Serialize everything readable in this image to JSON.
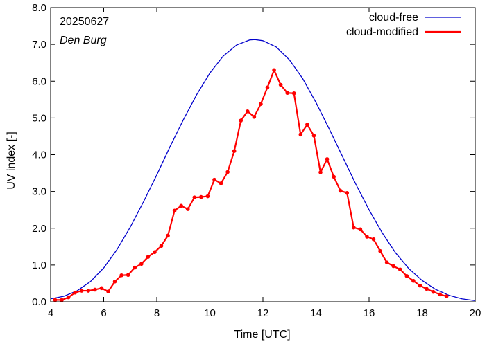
{
  "chart_data": {
    "type": "line",
    "title": "",
    "xlabel": "Time  [UTC]",
    "ylabel": "UV index  [-]",
    "xlim": [
      4,
      20
    ],
    "ylim": [
      0.0,
      8.0
    ],
    "x_ticks": [
      4,
      6,
      8,
      10,
      12,
      14,
      16,
      18,
      20
    ],
    "x_tick_labels": [
      "4",
      "6",
      "8",
      "10",
      "12",
      "14",
      "16",
      "18",
      "20"
    ],
    "y_ticks": [
      0,
      1,
      2,
      3,
      4,
      5,
      6,
      7,
      8
    ],
    "y_tick_labels": [
      "0.0",
      "1.0",
      "2.0",
      "3.0",
      "4.0",
      "5.0",
      "6.0",
      "7.0",
      "8.0"
    ],
    "grid": false,
    "legend_position": "top-right",
    "annotations": {
      "date": "20250627",
      "station": "Den Burg"
    },
    "series": [
      {
        "name": "cloud-free",
        "color": "#0000cc",
        "markers": false,
        "x": [
          4.0,
          4.5,
          5.0,
          5.5,
          6.0,
          6.5,
          7.0,
          7.5,
          8.0,
          8.5,
          9.0,
          9.5,
          10.0,
          10.5,
          11.0,
          11.5,
          11.7,
          12.0,
          12.5,
          13.0,
          13.5,
          14.0,
          14.5,
          15.0,
          15.5,
          16.0,
          16.5,
          17.0,
          17.5,
          18.0,
          18.5,
          19.0,
          19.5,
          20.0
        ],
        "y": [
          0.08,
          0.15,
          0.3,
          0.55,
          0.92,
          1.42,
          2.03,
          2.72,
          3.45,
          4.22,
          4.95,
          5.63,
          6.22,
          6.68,
          6.98,
          7.12,
          7.13,
          7.1,
          6.93,
          6.58,
          6.07,
          5.42,
          4.7,
          3.95,
          3.2,
          2.5,
          1.87,
          1.33,
          0.9,
          0.58,
          0.34,
          0.18,
          0.08,
          0.03
        ]
      },
      {
        "name": "cloud-modified",
        "color": "#ff0000",
        "markers": true,
        "x": [
          4.17,
          4.42,
          4.67,
          4.92,
          5.17,
          5.42,
          5.67,
          5.92,
          6.17,
          6.42,
          6.67,
          6.92,
          7.17,
          7.42,
          7.67,
          7.92,
          8.17,
          8.42,
          8.67,
          8.92,
          9.17,
          9.42,
          9.67,
          9.92,
          10.17,
          10.42,
          10.67,
          10.92,
          11.17,
          11.42,
          11.67,
          11.92,
          12.17,
          12.42,
          12.67,
          12.92,
          13.17,
          13.42,
          13.67,
          13.92,
          14.17,
          14.42,
          14.67,
          14.92,
          15.17,
          15.42,
          15.67,
          15.92,
          16.17,
          16.42,
          16.67,
          16.92,
          17.17,
          17.42,
          17.67,
          17.92,
          18.17,
          18.42,
          18.67,
          18.92
        ],
        "y": [
          0.05,
          0.05,
          0.12,
          0.25,
          0.3,
          0.3,
          0.33,
          0.37,
          0.28,
          0.55,
          0.72,
          0.73,
          0.93,
          1.03,
          1.22,
          1.35,
          1.52,
          1.8,
          2.48,
          2.61,
          2.52,
          2.84,
          2.85,
          2.87,
          3.32,
          3.22,
          3.53,
          4.1,
          4.93,
          5.18,
          5.03,
          5.38,
          5.83,
          6.3,
          5.9,
          5.68,
          5.67,
          4.55,
          4.82,
          4.52,
          3.52,
          3.88,
          3.4,
          3.02,
          2.96,
          2.02,
          1.97,
          1.77,
          1.7,
          1.38,
          1.07,
          0.97,
          0.88,
          0.7,
          0.57,
          0.44,
          0.35,
          0.27,
          0.2,
          0.15
        ]
      }
    ]
  }
}
